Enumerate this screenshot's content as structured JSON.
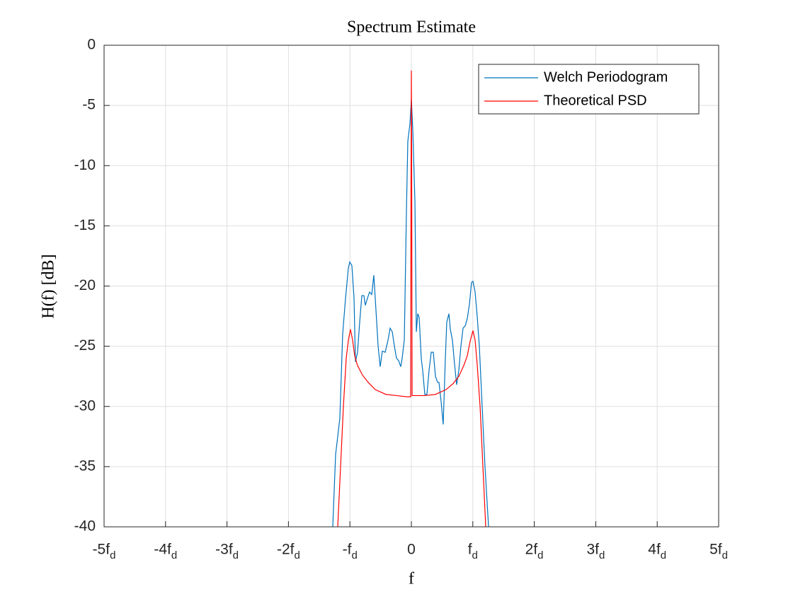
{
  "chart_data": {
    "type": "line",
    "title": "Spectrum Estimate",
    "x_label": "f",
    "y_label": "H(f) [dB]",
    "xlim": [
      -5,
      5
    ],
    "ylim": [
      -40,
      0
    ],
    "xticks": [
      {
        "value": -5,
        "label": "-5f_d"
      },
      {
        "value": -4,
        "label": "-4f_d"
      },
      {
        "value": -3,
        "label": "-3f_d"
      },
      {
        "value": -2,
        "label": "-2f_d"
      },
      {
        "value": -1,
        "label": "-f_d"
      },
      0,
      {
        "value": 1,
        "label": "f_d"
      },
      {
        "value": 2,
        "label": "2f_d"
      },
      {
        "value": 3,
        "label": "3f_d"
      },
      {
        "value": 4,
        "label": "4f_d"
      },
      {
        "value": 5,
        "label": "5f_d"
      }
    ],
    "yticks": [
      -40,
      -35,
      -30,
      -25,
      -20,
      -15,
      -10,
      -5,
      0
    ],
    "grid": true,
    "legend": "northeast",
    "series": [
      {
        "name": "Welch Periodogram",
        "color": "#0072bd",
        "x": [
          -1.279,
          -1.233,
          -1.164,
          -1.118,
          -1.071,
          -1.025,
          -1.002,
          -0.968,
          -0.933,
          -0.91,
          -0.876,
          -0.841,
          -0.806,
          -0.772,
          -0.749,
          -0.714,
          -0.68,
          -0.645,
          -0.611,
          -0.576,
          -0.541,
          -0.507,
          -0.472,
          -0.426,
          -0.38,
          -0.346,
          -0.311,
          -0.276,
          -0.242,
          -0.207,
          -0.173,
          -0.15,
          -0.115,
          -0.081,
          -0.058,
          -0.023,
          0,
          0.023,
          0.058,
          0.081,
          0.104,
          0.127,
          0.161,
          0.184,
          0.219,
          0.253,
          0.288,
          0.323,
          0.357,
          0.392,
          0.426,
          0.449,
          0.484,
          0.518,
          0.553,
          0.576,
          0.611,
          0.634,
          0.668,
          0.703,
          0.737,
          0.772,
          0.806,
          0.841,
          0.876,
          0.91,
          0.945,
          0.979,
          1.002,
          1.037,
          1.071,
          1.106,
          1.152,
          1.198,
          1.256
        ],
        "values": [
          -40,
          -34,
          -31,
          -24,
          -21,
          -18.5,
          -18,
          -18.3,
          -21,
          -26.3,
          -25.5,
          -23,
          -20.8,
          -20.8,
          -21.6,
          -21,
          -20.5,
          -20.7,
          -19.1,
          -22,
          -25,
          -26.7,
          -25.4,
          -25.5,
          -24.5,
          -23.5,
          -23.8,
          -25,
          -26,
          -26.2,
          -26.7,
          -26,
          -24.5,
          -14,
          -8,
          -6.5,
          -4.5,
          -7,
          -13,
          -23.8,
          -22.3,
          -22.6,
          -26,
          -27,
          -29,
          -29,
          -27,
          -25.5,
          -25.5,
          -27.5,
          -28,
          -28,
          -29.6,
          -31.5,
          -26,
          -23,
          -22.3,
          -23.6,
          -24.5,
          -26.5,
          -28.2,
          -27,
          -25,
          -23.5,
          -23.3,
          -22.7,
          -21.5,
          -19.7,
          -19.6,
          -20.5,
          -22.5,
          -25,
          -30,
          -35,
          -40
        ]
      },
      {
        "name": "Theoretical PSD",
        "color": "#ff0000",
        "x": [
          -1.198,
          -1.152,
          -1.106,
          -1.06,
          -1.025,
          -0.991,
          -0.956,
          -0.922,
          -0.876,
          -0.795,
          -0.703,
          -0.588,
          -0.415,
          -0.242,
          -0.069,
          -0.012,
          -0.006,
          0,
          0.006,
          0.012,
          0.219,
          0.392,
          0.565,
          0.68,
          0.772,
          0.853,
          0.91,
          0.956,
          1.002,
          1.037,
          1.071,
          1.118,
          1.164,
          1.21
        ],
        "values": [
          -40,
          -35,
          -30,
          -26,
          -24.5,
          -23.6,
          -24.5,
          -25.8,
          -26.6,
          -27.4,
          -28,
          -28.6,
          -29,
          -29.1,
          -29.2,
          -29.2,
          -12,
          -2.1,
          -12,
          -29.1,
          -29.1,
          -29,
          -28.6,
          -28.1,
          -27.5,
          -26.6,
          -25.8,
          -24.6,
          -23.7,
          -24.5,
          -26.5,
          -30,
          -35,
          -40
        ]
      }
    ]
  }
}
